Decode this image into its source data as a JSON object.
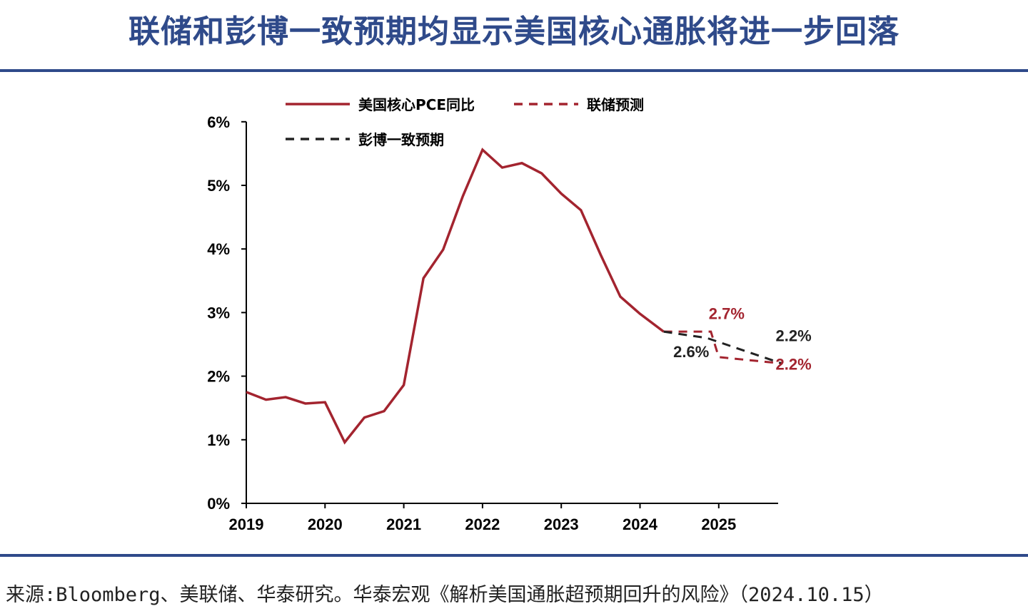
{
  "title": "联储和彭博一致预期均显示美国核心通胀将进一步回落",
  "source": "来源:Bloomberg、美联储、华泰研究。华泰宏观《解析美国通胀超预期回升的风险》（2024.10.15）",
  "colors": {
    "actual": "#a3242f",
    "fed": "#a3242f",
    "bloomberg": "#222222",
    "title": "#2f4a8a"
  },
  "chart_data": {
    "type": "line",
    "title": "",
    "xlabel": "",
    "ylabel": "",
    "xlim": [
      2019,
      2025.8
    ],
    "ylim": [
      0,
      6
    ],
    "x_ticks": [
      "2019",
      "2020",
      "2021",
      "2022",
      "2023",
      "2024",
      "2025"
    ],
    "y_ticks": [
      "0%",
      "1%",
      "2%",
      "3%",
      "4%",
      "5%",
      "6%"
    ],
    "legend": {
      "placement": "top-left",
      "entries": [
        "美国核心PCE同比",
        "联储预测",
        "彭博一致预期"
      ]
    },
    "series": [
      {
        "name": "美国核心PCE同比",
        "style": "solid",
        "color": "#a3242f",
        "x": [
          2019,
          2019.25,
          2019.5,
          2019.75,
          2020,
          2020.25,
          2020.5,
          2020.75,
          2021,
          2021.25,
          2021.5,
          2021.75,
          2022,
          2022.25,
          2022.5,
          2022.75,
          2023,
          2023.25,
          2023.5,
          2023.75,
          2024,
          2024.3
        ],
        "y": [
          1.75,
          1.63,
          1.67,
          1.57,
          1.59,
          0.96,
          1.35,
          1.45,
          1.86,
          3.54,
          3.99,
          4.83,
          5.56,
          5.28,
          5.35,
          5.19,
          4.87,
          4.61,
          3.91,
          3.25,
          2.98,
          2.7
        ]
      },
      {
        "name": "联储预测",
        "style": "dashed",
        "color": "#a3242f",
        "x": [
          2024.3,
          2024.9,
          2025.0,
          2025.8
        ],
        "y": [
          2.7,
          2.7,
          2.3,
          2.2
        ]
      },
      {
        "name": "彭博一致预期",
        "style": "dashed",
        "color": "#222222",
        "x": [
          2024.3,
          2024.85,
          2025.8
        ],
        "y": [
          2.7,
          2.6,
          2.2
        ]
      }
    ],
    "annotations": [
      {
        "text": "2.7%",
        "x": 2025.1,
        "y": 2.9,
        "color": "#a3242f"
      },
      {
        "text": "2.6%",
        "x": 2024.65,
        "y": 2.3,
        "color": "#222222"
      },
      {
        "text": "2.2%",
        "x": 2025.95,
        "y": 2.55,
        "color": "#222222"
      },
      {
        "text": "2.2%",
        "x": 2025.95,
        "y": 2.1,
        "color": "#a3242f"
      }
    ]
  }
}
